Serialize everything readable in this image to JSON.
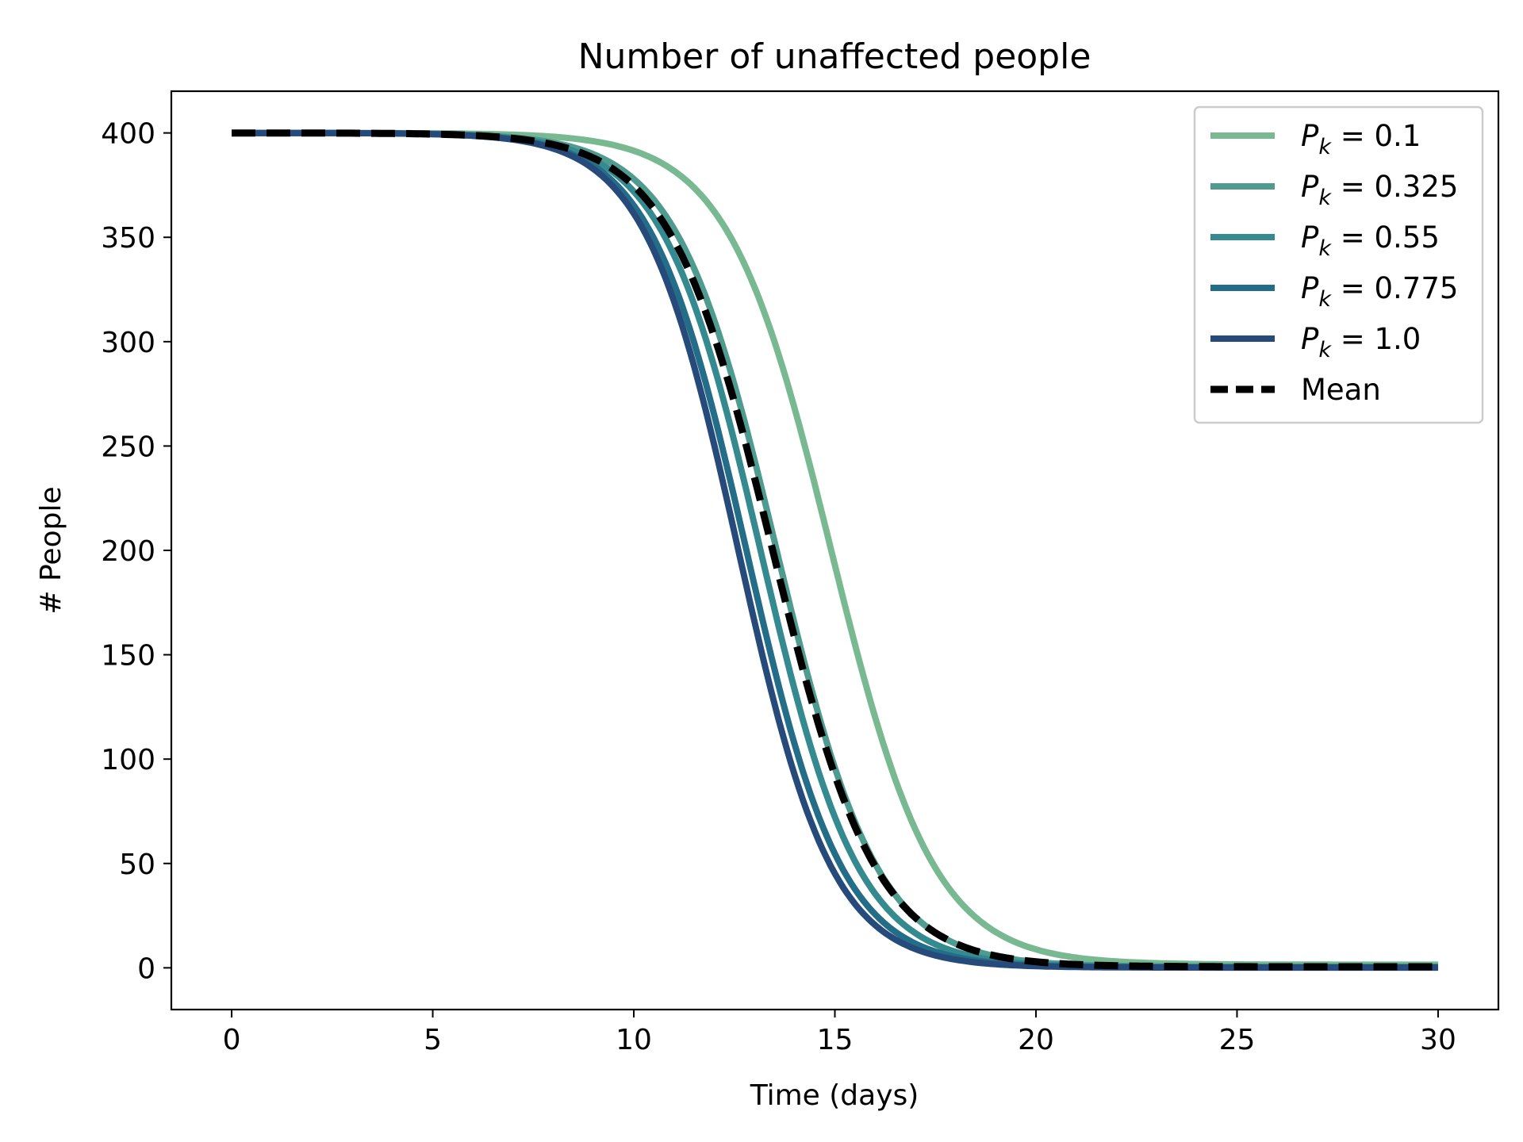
{
  "chart_data": {
    "type": "line",
    "title": "Number of unaffected people",
    "xlabel": "Time (days)",
    "ylabel": "# People",
    "xlim": [
      -1.5,
      31.5
    ],
    "ylim": [
      -20,
      420
    ],
    "xticks": [
      0,
      5,
      10,
      15,
      20,
      25,
      30
    ],
    "yticks": [
      0,
      50,
      100,
      150,
      200,
      250,
      300,
      350,
      400
    ],
    "grid": false,
    "legend_position": "top-right",
    "x_range": [
      0,
      30
    ],
    "series": [
      {
        "name": "P_k = 0.1",
        "legend_prefix": "P",
        "legend_subscript": "k",
        "legend_value": " = 0.1",
        "color": "#78b992",
        "dashed": false,
        "midpoint": 14.9,
        "steepness": 0.78,
        "final": 1.5
      },
      {
        "name": "P_k = 0.325",
        "legend_prefix": "P",
        "legend_subscript": "k",
        "legend_value": " = 0.325",
        "color": "#4f9b8f",
        "dashed": false,
        "midpoint": 13.55,
        "steepness": 0.8,
        "final": 0.5
      },
      {
        "name": "P_k = 0.55",
        "legend_prefix": "P",
        "legend_subscript": "k",
        "legend_value": " = 0.55",
        "color": "#348a8e",
        "dashed": false,
        "midpoint": 13.15,
        "steepness": 0.82,
        "final": 0.3
      },
      {
        "name": "P_k = 0.775",
        "legend_prefix": "P",
        "legend_subscript": "k",
        "legend_value": " = 0.775",
        "color": "#236d88",
        "dashed": false,
        "midpoint": 12.8,
        "steepness": 0.84,
        "final": 0.2
      },
      {
        "name": "P_k = 1.0",
        "legend_prefix": "P",
        "legend_subscript": "k",
        "legend_value": " = 1.0",
        "color": "#264b7b",
        "dashed": false,
        "midpoint": 12.6,
        "steepness": 0.86,
        "final": 0.1
      },
      {
        "name": "Mean",
        "legend_prefix": "",
        "legend_subscript": "",
        "legend_value": "Mean",
        "color": "#000000",
        "dashed": true,
        "midpoint": 13.45,
        "steepness": 0.78,
        "final": 0.5
      }
    ]
  }
}
